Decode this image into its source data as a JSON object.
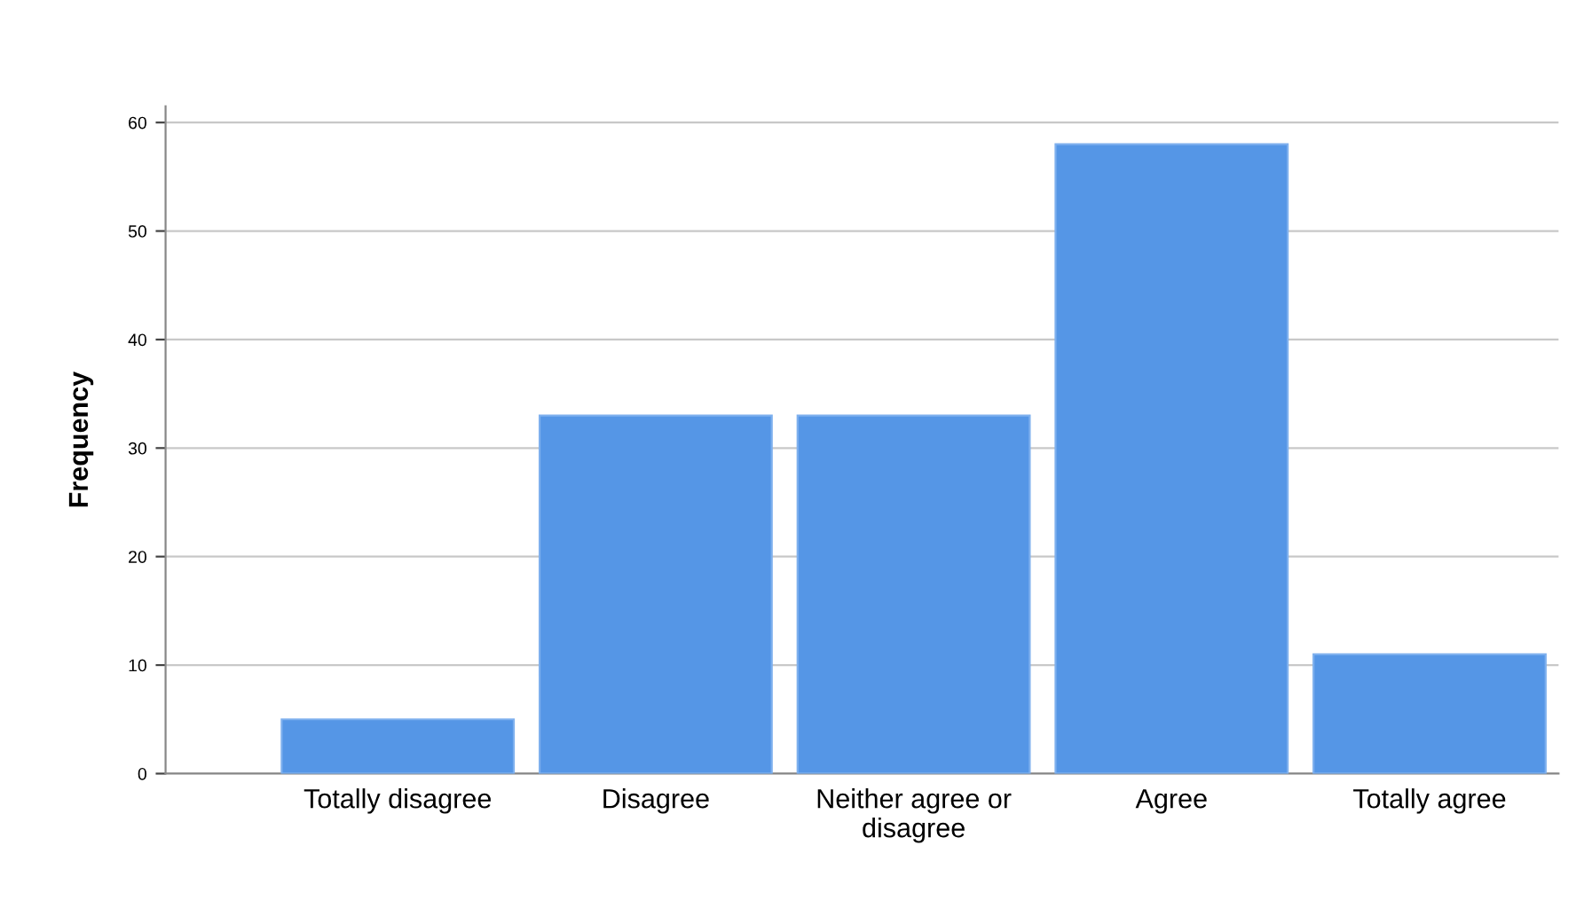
{
  "chart_data": {
    "type": "bar",
    "ylabel": "Frequency",
    "categories": [
      "Totally disagree",
      "Disagree",
      "Neither agree or\ndisagree",
      "Agree",
      "Totally agree"
    ],
    "values": [
      5,
      33,
      33,
      58,
      11
    ],
    "color": "#5596e6",
    "ylim": [
      0,
      61.5
    ],
    "yticks": [
      0,
      10,
      20,
      30,
      40,
      50,
      60
    ],
    "grid": "y"
  }
}
